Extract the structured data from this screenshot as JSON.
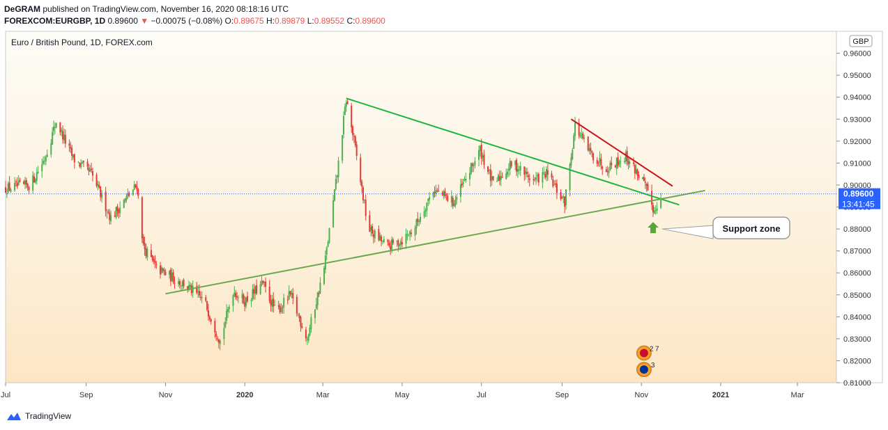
{
  "header": {
    "publisher": "DeGRAM",
    "published_text": "published on TradingView.com, November 16, 2020 08:18:16 UTC",
    "symbol": "FOREXCOM:EURGBP, 1D",
    "last": "0.89600",
    "change": "−0.00075 (−0.08%)",
    "o_label": "O:",
    "o_value": "0.89675",
    "h_label": "H:",
    "h_value": "0.89879",
    "l_label": "L:",
    "l_value": "0.89552",
    "c_label": "C:",
    "c_value": "0.89600"
  },
  "footer": {
    "brand": "TradingView"
  },
  "colors": {
    "up": "#26a69a",
    "down": "#ef5350",
    "candle_up": "#4caf50",
    "candle_down": "#e53935",
    "price_tag": "#2962ff",
    "green_line": "#19b53c",
    "olive_line": "#6aa84f",
    "red_line": "#cc1414",
    "arrow": "#5ba33b"
  },
  "chart_data": {
    "type": "candlestick",
    "title": "Euro / British Pound, 1D, FOREX.com",
    "currency_label": "GBP",
    "y_ticks": [
      "0.96000",
      "0.95000",
      "0.94000",
      "0.93000",
      "0.92000",
      "0.91000",
      "0.90000",
      "0.89000",
      "0.88000",
      "0.87000",
      "0.86000",
      "0.85000",
      "0.84000",
      "0.83000",
      "0.82000",
      "0.81000"
    ],
    "x_ticks": [
      "Jul",
      "Sep",
      "Nov",
      "2020",
      "Mar",
      "May",
      "Jul",
      "Sep",
      "Nov",
      "2021",
      "Mar"
    ],
    "x_range": [
      "2019-07-01",
      "2021-03-31"
    ],
    "ylim": [
      0.81,
      0.97
    ],
    "current_price_label": "0.89600",
    "countdown_label": "13:41:45",
    "price_path": [
      [
        "2019-07-01",
        0.8985
      ],
      [
        "2019-07-20",
        0.9
      ],
      [
        "2019-07-31",
        0.912
      ],
      [
        "2019-08-09",
        0.929
      ],
      [
        "2019-08-22",
        0.912
      ],
      [
        "2019-09-05",
        0.905
      ],
      [
        "2019-09-20",
        0.885
      ],
      [
        "2019-10-10",
        0.9
      ],
      [
        "2019-10-15",
        0.872
      ],
      [
        "2019-10-25",
        0.862
      ],
      [
        "2019-11-15",
        0.855
      ],
      [
        "2019-12-01",
        0.847
      ],
      [
        "2019-12-13",
        0.829
      ],
      [
        "2019-12-23",
        0.852
      ],
      [
        "2020-01-01",
        0.847
      ],
      [
        "2020-01-15",
        0.855
      ],
      [
        "2020-01-25",
        0.842
      ],
      [
        "2020-02-05",
        0.85
      ],
      [
        "2020-02-18",
        0.83
      ],
      [
        "2020-03-02",
        0.862
      ],
      [
        "2020-03-12",
        0.905
      ],
      [
        "2020-03-19",
        0.939
      ],
      [
        "2020-03-25",
        0.92
      ],
      [
        "2020-04-05",
        0.88
      ],
      [
        "2020-04-20",
        0.872
      ],
      [
        "2020-05-01",
        0.875
      ],
      [
        "2020-05-10",
        0.88
      ],
      [
        "2020-05-25",
        0.898
      ],
      [
        "2020-06-10",
        0.892
      ],
      [
        "2020-06-30",
        0.916
      ],
      [
        "2020-07-10",
        0.9
      ],
      [
        "2020-07-25",
        0.91
      ],
      [
        "2020-08-10",
        0.902
      ],
      [
        "2020-08-20",
        0.905
      ],
      [
        "2020-09-03",
        0.892
      ],
      [
        "2020-09-11",
        0.927
      ],
      [
        "2020-09-22",
        0.915
      ],
      [
        "2020-10-05",
        0.908
      ],
      [
        "2020-10-20",
        0.913
      ],
      [
        "2020-11-02",
        0.902
      ],
      [
        "2020-11-11",
        0.888
      ],
      [
        "2020-11-16",
        0.896
      ]
    ],
    "annotations": [
      {
        "type": "line",
        "name": "descending-triangle-line",
        "color": "green",
        "from": [
          "2020-03-19",
          0.9395
        ],
        "to": [
          "2020-11-30",
          0.891
        ]
      },
      {
        "type": "line",
        "name": "rising-support-line",
        "color": "olive",
        "from": [
          "2019-11-01",
          0.8505
        ],
        "to": [
          "2020-12-20",
          0.8975
        ]
      },
      {
        "type": "line",
        "name": "resistance-line",
        "color": "red",
        "from": [
          "2020-09-08",
          0.93
        ],
        "to": [
          "2020-11-25",
          0.8995
        ]
      },
      {
        "type": "arrow",
        "direction": "up",
        "at": [
          "2020-11-10",
          0.88
        ]
      },
      {
        "type": "callout",
        "text": "Support zone",
        "anchor": [
          "2020-11-17",
          0.88
        ]
      }
    ],
    "event_badges": [
      {
        "text": "2",
        "flag": "uk"
      },
      {
        "text": "7",
        "flag": "uk"
      },
      {
        "text": "3",
        "flag": "eu"
      }
    ]
  }
}
